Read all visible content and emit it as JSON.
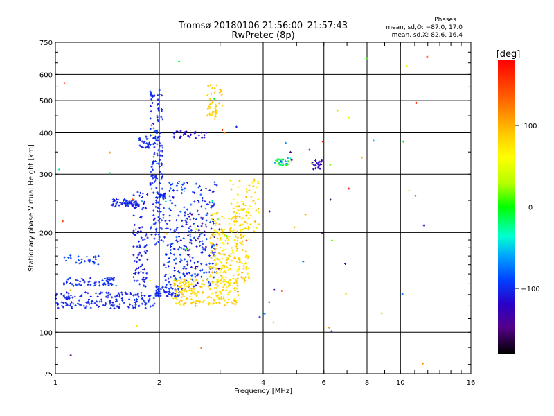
{
  "chart_data": {
    "type": "scatter",
    "title": "Tromsø 20180106 21:56:00–21:57:43",
    "subtitle": "RwPretec (8p)",
    "xlabel": "Frequency [MHz]",
    "ylabel": "Stationary phase Virtual Height [km]",
    "x_scale": "log",
    "y_scale": "log",
    "xlim": [
      1,
      16
    ],
    "ylim": [
      75,
      750
    ],
    "x_ticks": [
      {
        "value": 1,
        "label": "1"
      },
      {
        "value": 2,
        "label": "2"
      },
      {
        "value": 4,
        "label": "4"
      },
      {
        "value": 6,
        "label": "6"
      },
      {
        "value": 8,
        "label": "8"
      },
      {
        "value": 10,
        "label": "10"
      },
      {
        "value": 16,
        "label": "16"
      }
    ],
    "y_ticks": [
      {
        "value": 75,
        "label": "75"
      },
      {
        "value": 100,
        "label": "100"
      },
      {
        "value": 200,
        "label": "200"
      },
      {
        "value": 300,
        "label": "300"
      },
      {
        "value": 400,
        "label": "400"
      },
      {
        "value": 500,
        "label": "500"
      },
      {
        "value": 600,
        "label": "600"
      },
      {
        "value": 750,
        "label": "750"
      }
    ],
    "grid": true,
    "legend": {
      "heading": "Phases",
      "line1": "mean, sd,O: −87.0, 17.0",
      "line2": "mean, sd,X:  82.6, 16.4"
    },
    "colorbar": {
      "label": "[deg]",
      "range": [
        -180,
        180
      ],
      "ticks": [
        {
          "value": 100,
          "label": "100"
        },
        {
          "value": 0,
          "label": "0"
        },
        {
          "value": -100,
          "label": "−100"
        }
      ]
    },
    "clusters": [
      {
        "name": "o-low-trace",
        "x": [
          1.0,
          1.95
        ],
        "y": [
          118,
          132
        ],
        "phase": [
          -110,
          -95
        ],
        "n": 170
      },
      {
        "name": "o-shelf-130",
        "x": [
          1.95,
          2.3
        ],
        "y": [
          128,
          138
        ],
        "phase": [
          -110,
          -95
        ],
        "n": 60
      },
      {
        "name": "o-band-140",
        "x": [
          1.05,
          1.5
        ],
        "y": [
          138,
          146
        ],
        "phase": [
          -110,
          -90
        ],
        "n": 60
      },
      {
        "name": "o-band-165",
        "x": [
          1.05,
          1.35
        ],
        "y": [
          160,
          172
        ],
        "phase": [
          -100,
          -85
        ],
        "n": 25
      },
      {
        "name": "o-column-1.7",
        "x": [
          1.68,
          1.85
        ],
        "y": [
          135,
          265
        ],
        "phase": [
          -115,
          -95
        ],
        "n": 90
      },
      {
        "name": "o-column-1.9",
        "x": [
          1.88,
          2.05
        ],
        "y": [
          180,
          540
        ],
        "phase": [
          -110,
          -90
        ],
        "n": 160
      },
      {
        "name": "o-layer-245",
        "x": [
          1.45,
          1.75
        ],
        "y": [
          240,
          252
        ],
        "phase": [
          -110,
          -95
        ],
        "n": 60
      },
      {
        "name": "o-layer-258",
        "x": [
          1.95,
          2.1
        ],
        "y": [
          254,
          262
        ],
        "phase": [
          -110,
          -95
        ],
        "n": 20
      },
      {
        "name": "o-layer-380",
        "x": [
          1.75,
          1.9
        ],
        "y": [
          360,
          390
        ],
        "phase": [
          -110,
          -95
        ],
        "n": 25
      },
      {
        "name": "o-cloud-2.1",
        "x": [
          2.05,
          2.9
        ],
        "y": [
          135,
          285
        ],
        "phase": [
          -115,
          -80
        ],
        "n": 260
      },
      {
        "name": "o-purple-2.4",
        "x": [
          2.4,
          3.0
        ],
        "y": [
          150,
          230
        ],
        "phase": [
          -150,
          -130
        ],
        "n": 30
      },
      {
        "name": "o-band-395",
        "x": [
          2.2,
          2.75
        ],
        "y": [
          385,
          405
        ],
        "phase": [
          -130,
          -105
        ],
        "n": 30
      },
      {
        "name": "x-arc-2.2",
        "x": [
          2.2,
          3.4
        ],
        "y": [
          120,
          145
        ],
        "phase": [
          70,
          95
        ],
        "n": 190
      },
      {
        "name": "x-cloud-2.8",
        "x": [
          2.8,
          3.65
        ],
        "y": [
          140,
          230
        ],
        "phase": [
          60,
          100
        ],
        "n": 230
      },
      {
        "name": "x-column-3.3",
        "x": [
          3.2,
          3.9
        ],
        "y": [
          200,
          290
        ],
        "phase": [
          60,
          100
        ],
        "n": 70
      },
      {
        "name": "x-column-2.8",
        "x": [
          2.75,
          3.05
        ],
        "y": [
          440,
          560
        ],
        "phase": [
          75,
          95
        ],
        "n": 45
      },
      {
        "name": "blob-4.5",
        "x": [
          4.3,
          4.8
        ],
        "y": [
          318,
          336
        ],
        "phase": [
          -90,
          20
        ],
        "n": 30
      },
      {
        "name": "blob-5.6",
        "x": [
          5.5,
          5.95
        ],
        "y": [
          310,
          335
        ],
        "phase": [
          -150,
          -110
        ],
        "n": 20
      },
      {
        "name": "noise",
        "x": [
          1.0,
          12.0
        ],
        "y": [
          80,
          700
        ],
        "phase": [
          -170,
          170
        ],
        "n": 70
      }
    ]
  }
}
